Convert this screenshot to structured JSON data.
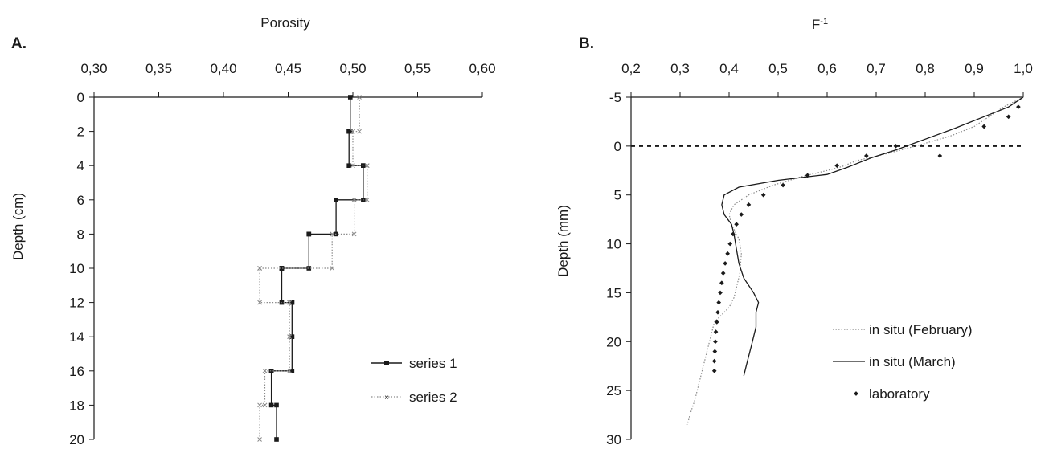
{
  "chart_data": [
    {
      "panel_label": "A.",
      "type": "line",
      "title": "",
      "xlabel": "Porosity",
      "ylabel": "Depth (cm)",
      "x_axis_position": "top",
      "y_inverted": true,
      "xlim": [
        0.3,
        0.6
      ],
      "ylim": [
        0,
        20
      ],
      "x_ticks": [
        "0,30",
        "0,35",
        "0,40",
        "0,45",
        "0,50",
        "0,55",
        "0,60"
      ],
      "x_tick_values": [
        0.3,
        0.35,
        0.4,
        0.45,
        0.5,
        0.55,
        0.6
      ],
      "y_ticks": [
        "0",
        "2",
        "4",
        "6",
        "8",
        "10",
        "12",
        "14",
        "16",
        "18",
        "20"
      ],
      "y_tick_values": [
        0,
        2,
        4,
        6,
        8,
        10,
        12,
        14,
        16,
        18,
        20
      ],
      "grid": false,
      "legend": "right",
      "series": [
        {
          "name": "series 1",
          "color": "#1a1a1a",
          "style": "solid",
          "marker": "square",
          "x": [
            0.498,
            0.498,
            0.497,
            0.497,
            0.497,
            0.497,
            0.508,
            0.508,
            0.508,
            0.508,
            0.487,
            0.487,
            0.487,
            0.487,
            0.466,
            0.466,
            0.466,
            0.466,
            0.445,
            0.445,
            0.445,
            0.445,
            0.453,
            0.453,
            0.453,
            0.453,
            0.453,
            0.453,
            0.437,
            0.437,
            0.437,
            0.437,
            0.441,
            0.441
          ],
          "y": [
            0,
            2,
            2,
            2,
            2,
            4,
            4,
            4,
            4,
            6,
            6,
            6,
            6,
            8,
            8,
            8,
            8,
            10,
            10,
            10,
            10,
            12,
            12,
            12,
            12,
            14,
            14,
            16,
            16,
            16,
            16,
            18,
            18,
            20
          ]
        },
        {
          "name": "series 2",
          "color": "#8a8a8a",
          "style": "dotted",
          "marker": "x",
          "x": [
            0.505,
            0.505,
            0.5,
            0.5,
            0.5,
            0.5,
            0.511,
            0.511,
            0.511,
            0.511,
            0.501,
            0.501,
            0.501,
            0.501,
            0.484,
            0.484,
            0.484,
            0.484,
            0.428,
            0.428,
            0.428,
            0.428,
            0.451,
            0.451,
            0.451,
            0.451,
            0.451,
            0.451,
            0.432,
            0.432,
            0.432,
            0.432,
            0.428,
            0.428
          ],
          "y": [
            0,
            2,
            2,
            2,
            2,
            4,
            4,
            4,
            4,
            6,
            6,
            6,
            6,
            8,
            8,
            8,
            8,
            10,
            10,
            10,
            10,
            12,
            12,
            12,
            12,
            14,
            14,
            16,
            16,
            16,
            16,
            18,
            18,
            20
          ]
        }
      ]
    },
    {
      "panel_label": "B.",
      "type": "line",
      "title": "",
      "xlabel": "F -1",
      "xlabel_base": "F",
      "xlabel_sup": "-1",
      "ylabel": "Depth (mm)",
      "x_axis_position": "top",
      "y_inverted": true,
      "xlim": [
        0.2,
        1.0
      ],
      "ylim": [
        -5,
        30
      ],
      "x_ticks": [
        "0,2",
        "0,3",
        "0,4",
        "0,5",
        "0,6",
        "0,7",
        "0,8",
        "0,9",
        "1,0"
      ],
      "x_tick_values": [
        0.2,
        0.3,
        0.4,
        0.5,
        0.6,
        0.7,
        0.8,
        0.9,
        1.0
      ],
      "y_ticks": [
        "-5",
        "0",
        "5",
        "10",
        "15",
        "20",
        "25",
        "30"
      ],
      "y_tick_values": [
        -5,
        0,
        5,
        10,
        15,
        20,
        25,
        30
      ],
      "grid": false,
      "legend": "bottom-right",
      "reference_line": {
        "y": 0,
        "style": "dashed",
        "color": "#1a1a1a"
      },
      "series": [
        {
          "name": "in situ (February)",
          "color": "#8a8a8a",
          "style": "dotted",
          "x": [
            1.0,
            0.96,
            0.9,
            0.85,
            0.78,
            0.72,
            0.66,
            0.63,
            0.6,
            0.55,
            0.49,
            0.44,
            0.41,
            0.4,
            0.405,
            0.42,
            0.425,
            0.422,
            0.415,
            0.41,
            0.4,
            0.37,
            0.36,
            0.35,
            0.34,
            0.33,
            0.32,
            0.315
          ],
          "y": [
            -5,
            -4,
            -2,
            -1,
            0,
            0.8,
            1.5,
            2.1,
            2.5,
            3.1,
            4.0,
            5.0,
            6.0,
            7.0,
            8.0,
            9.5,
            11.0,
            13.0,
            14.5,
            15.5,
            16.5,
            18.0,
            20.0,
            22.0,
            24.0,
            26.0,
            27.5,
            28.5
          ]
        },
        {
          "name": "in situ (March)",
          "color": "#1a1a1a",
          "style": "solid",
          "x": [
            1.0,
            0.97,
            0.92,
            0.86,
            0.8,
            0.74,
            0.69,
            0.66,
            0.64,
            0.6,
            0.5,
            0.42,
            0.39,
            0.385,
            0.39,
            0.405,
            0.41,
            0.415,
            0.42,
            0.43,
            0.45,
            0.46,
            0.455,
            0.455,
            0.45,
            0.445,
            0.44,
            0.435,
            0.43
          ],
          "y": [
            -5,
            -4,
            -3,
            -1.8,
            -0.7,
            0.4,
            1.2,
            1.8,
            2.2,
            2.9,
            3.5,
            4.2,
            5.0,
            6.0,
            7.0,
            8.0,
            9.0,
            10.5,
            12.0,
            13.5,
            15.0,
            16.0,
            17.0,
            18.5,
            19.5,
            20.5,
            21.5,
            22.5,
            23.5
          ]
        },
        {
          "name": "laboratory",
          "color": "#1a1a1a",
          "style": "points",
          "marker": "diamond",
          "x": [
            0.99,
            0.97,
            0.92,
            0.83,
            0.74,
            0.68,
            0.62,
            0.56,
            0.51,
            0.47,
            0.44,
            0.425,
            0.415,
            0.408,
            0.402,
            0.397,
            0.392,
            0.388,
            0.385,
            0.382,
            0.379,
            0.377,
            0.375,
            0.373,
            0.372,
            0.371,
            0.37,
            0.37
          ],
          "y": [
            -4,
            -3,
            -2,
            1,
            0,
            1,
            2,
            3,
            4,
            5,
            6,
            7,
            8,
            9,
            10,
            11,
            12,
            13,
            14,
            15,
            16,
            17,
            18,
            19,
            20,
            21,
            22,
            23
          ]
        }
      ]
    }
  ]
}
